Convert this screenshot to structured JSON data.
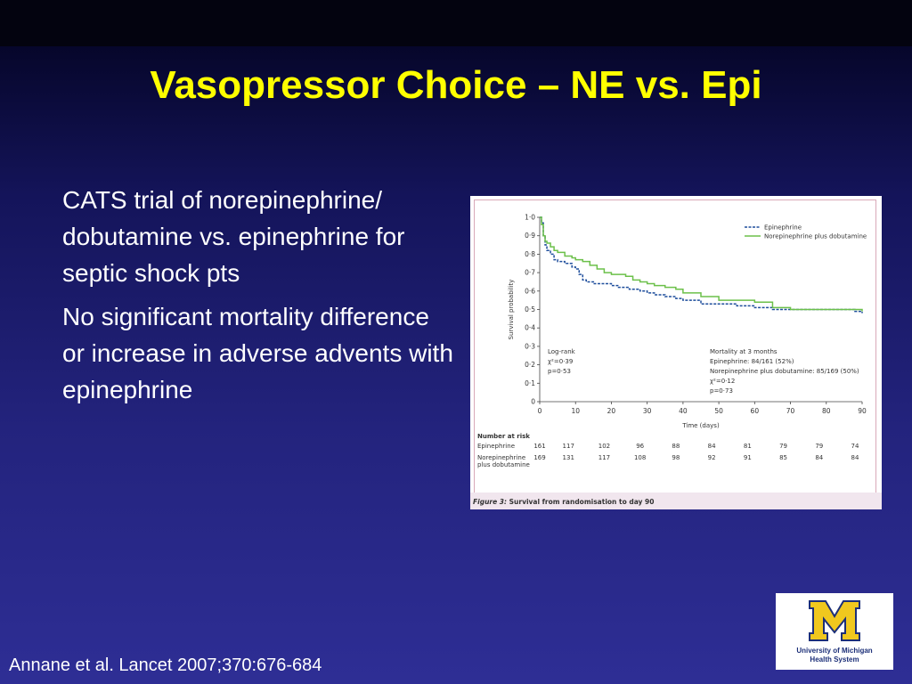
{
  "slide": {
    "title": "Vasopressor Choice – NE vs. Epi",
    "bullets": [
      "CATS trial of norepinephrine/ dobutamine vs. epinephrine for septic shock pts",
      "No significant mortality difference or increase in adverse advents with epinephrine"
    ],
    "citation": "Annane et al.  Lancet 2007;370:676-684"
  },
  "logo": {
    "line1": "University of Michigan",
    "line2": "Health System",
    "colors": {
      "maize": "#f0c81e",
      "blue": "#1c2f78"
    }
  },
  "colors": {
    "title": "#ffff00",
    "text": "#ffffff",
    "epinephrine": "#1f4e9c",
    "norepinephrine": "#6cc04a"
  },
  "chart_data": {
    "type": "line",
    "ylabel": "Survival probability",
    "xlabel": "Time (days)",
    "xlim": [
      0,
      90
    ],
    "ylim": [
      0,
      1
    ],
    "x_ticks": [
      "0",
      "10",
      "20",
      "30",
      "40",
      "50",
      "60",
      "70",
      "80",
      "90"
    ],
    "y_ticks": [
      "0",
      "0·1",
      "0·2",
      "0·3",
      "0·4",
      "0·5",
      "0·6",
      "0·7",
      "0·8",
      "0·9",
      "1·0"
    ],
    "legend": {
      "placement": "top-right"
    },
    "series": [
      {
        "name": "Epinephrine",
        "color": "#1f4e9c",
        "style": "dashed",
        "x": [
          0,
          0.5,
          1,
          1.5,
          2,
          3,
          4,
          5,
          7,
          9,
          10,
          11,
          12,
          13,
          15,
          18,
          20,
          22,
          25,
          28,
          30,
          32,
          35,
          38,
          40,
          45,
          50,
          55,
          60,
          65,
          70,
          75,
          80,
          85,
          88,
          90
        ],
        "y": [
          1.0,
          0.97,
          0.9,
          0.85,
          0.82,
          0.8,
          0.77,
          0.76,
          0.75,
          0.73,
          0.72,
          0.69,
          0.66,
          0.65,
          0.64,
          0.64,
          0.63,
          0.62,
          0.61,
          0.6,
          0.59,
          0.58,
          0.57,
          0.56,
          0.55,
          0.53,
          0.53,
          0.52,
          0.51,
          0.5,
          0.5,
          0.5,
          0.5,
          0.5,
          0.49,
          0.48
        ]
      },
      {
        "name": "Norepinephrine plus dobutamine",
        "color": "#6cc04a",
        "style": "solid",
        "x": [
          0,
          0.5,
          1,
          1.5,
          2,
          3,
          4,
          5,
          7,
          9,
          10,
          12,
          14,
          16,
          18,
          20,
          24,
          26,
          28,
          30,
          32,
          35,
          38,
          40,
          45,
          50,
          55,
          60,
          65,
          70,
          75,
          80,
          85,
          90
        ],
        "y": [
          1.0,
          0.96,
          0.9,
          0.87,
          0.86,
          0.84,
          0.82,
          0.81,
          0.79,
          0.78,
          0.77,
          0.76,
          0.74,
          0.72,
          0.7,
          0.69,
          0.68,
          0.66,
          0.65,
          0.64,
          0.63,
          0.62,
          0.61,
          0.59,
          0.57,
          0.55,
          0.55,
          0.54,
          0.51,
          0.5,
          0.5,
          0.5,
          0.5,
          0.49
        ]
      }
    ],
    "annotations": {
      "logrank": [
        "Log-rank",
        "χ²=0·39",
        "p=0·53"
      ],
      "mortality": [
        "Mortality at 3 months",
        "Epinephrine: 84/161 (52%)",
        "Norepinephrine plus dobutamine: 85/169 (50%)",
        "χ²=0·12",
        "p=0·73"
      ]
    },
    "number_at_risk": {
      "title": "Number at risk",
      "rows": [
        {
          "label": [
            "Epinephrine"
          ],
          "values": [
            "161",
            "117",
            "102",
            "96",
            "88",
            "84",
            "81",
            "79",
            "79",
            "74"
          ]
        },
        {
          "label": [
            "Norepinephrine",
            "plus dobutamine"
          ],
          "values": [
            "169",
            "131",
            "117",
            "108",
            "98",
            "92",
            "91",
            "85",
            "84",
            "84"
          ]
        }
      ]
    },
    "caption": {
      "prefix": "Figure 3:",
      "text": " Survival from randomisation to day 90"
    }
  }
}
